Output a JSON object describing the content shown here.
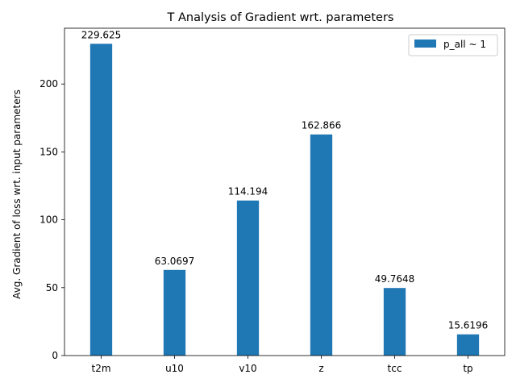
{
  "chart_data": {
    "type": "bar",
    "title": "T Analysis of Gradient wrt. parameters",
    "xlabel": "",
    "ylabel": "Avg. Gradient of loss wrt. input parameters",
    "categories": [
      "t2m",
      "u10",
      "v10",
      "z",
      "tcc",
      "tp"
    ],
    "series": [
      {
        "name": "p_all ~ 1",
        "values": [
          229.625,
          63.0697,
          114.194,
          162.866,
          49.7648,
          15.6196
        ],
        "labels": [
          "229.625",
          "63.0697",
          "114.194",
          "162.866",
          "49.7648",
          "15.6196"
        ],
        "color": "#1f77b4"
      }
    ],
    "ylim": [
      0,
      241.1
    ],
    "yticks": [
      0,
      50,
      100,
      150,
      200
    ],
    "grid": false,
    "legend_position": "top-right"
  }
}
